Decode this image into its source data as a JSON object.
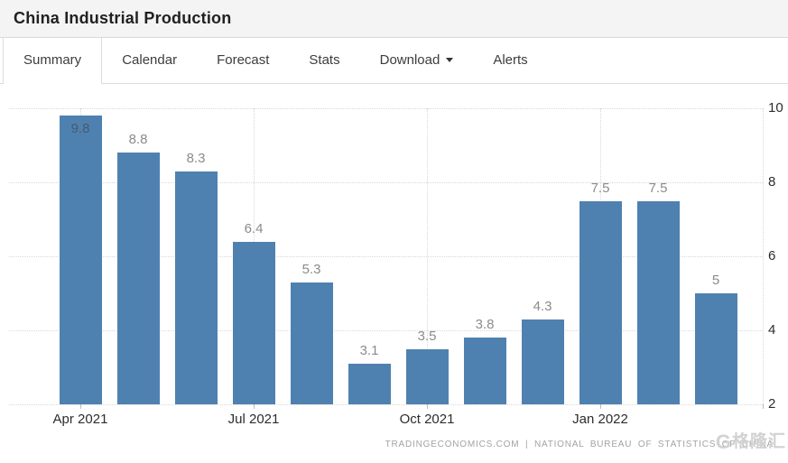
{
  "page": {
    "title": "China Industrial Production"
  },
  "tabs": [
    {
      "label": "Summary",
      "active": true,
      "has_dropdown": false
    },
    {
      "label": "Calendar",
      "active": false,
      "has_dropdown": false
    },
    {
      "label": "Forecast",
      "active": false,
      "has_dropdown": false
    },
    {
      "label": "Stats",
      "active": false,
      "has_dropdown": false
    },
    {
      "label": "Download",
      "active": false,
      "has_dropdown": true
    },
    {
      "label": "Alerts",
      "active": false,
      "has_dropdown": false
    }
  ],
  "chart_data": {
    "type": "bar",
    "title": "China Industrial Production",
    "values": [
      9.8,
      8.8,
      8.3,
      6.4,
      5.3,
      3.1,
      3.5,
      3.8,
      4.3,
      7.5,
      7.5,
      5
    ],
    "value_labels": [
      "9.8",
      "8.8",
      "8.3",
      "6.4",
      "5.3",
      "3.1",
      "3.5",
      "3.8",
      "4.3",
      "7.5",
      "7.5",
      "5"
    ],
    "inside_label_indices": [
      0
    ],
    "x_ticks": [
      {
        "label": "Apr 2021",
        "bar_index": 0
      },
      {
        "label": "Jul 2021",
        "bar_index": 3
      },
      {
        "label": "Oct 2021",
        "bar_index": 6
      },
      {
        "label": "Jan 2022",
        "bar_index": 9
      }
    ],
    "yticks": [
      10,
      8,
      6,
      4,
      2
    ],
    "ylim": [
      2,
      10
    ],
    "xlabel": "",
    "ylabel": "",
    "y_axis_side": "right",
    "grid": "dotted",
    "bar_color": "#4e81b0"
  },
  "attribution": {
    "text": "TRADINGECONOMICS.COM | NATIONAL BUREAU OF STATISTICS OF CHINA"
  },
  "watermark": {
    "logo_letter": "G",
    "text": "格隆汇"
  },
  "colors": {
    "bar": "#4e81b0",
    "header_bg": "#f4f4f4",
    "border": "#dddddd",
    "value_label": "#8b8b8b"
  }
}
